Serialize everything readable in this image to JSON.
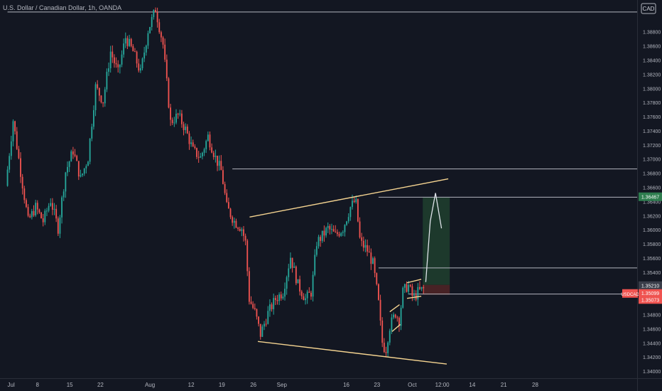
{
  "header": {
    "symbol_description": "U.S. Dollar / Canadian Dollar, 1h, OANDA",
    "currency": "CAD"
  },
  "colors": {
    "background": "#131722",
    "up": "#26a69a",
    "down": "#ef5350",
    "trendline": "#f5d491",
    "hline": "#b2b5be",
    "target_zone": "#1e3b2d",
    "stop_zone": "#4a2326",
    "target_badge": "#2e7d4f",
    "price_badge": "#ef5350",
    "stop_badge": "#ef5350",
    "axis_text": "#b2b5be"
  },
  "chart_data": {
    "type": "candlestick",
    "ylim": [
      1.339,
      1.3925
    ],
    "xlim": [
      -1,
      84
    ],
    "y_ticks": [
      "1.38800",
      "1.38600",
      "1.38400",
      "1.38200",
      "1.38000",
      "1.37800",
      "1.37600",
      "1.37400",
      "1.37200",
      "1.37000",
      "1.36800",
      "1.36600",
      "1.36400",
      "1.36200",
      "1.36000",
      "1.35800",
      "1.35600",
      "1.35400",
      "1.35200",
      "1.35000",
      "1.34800",
      "1.34600",
      "1.34400",
      "1.34200",
      "1.34000"
    ],
    "x_ticks": [
      {
        "label": "Jul",
        "x": 0
      },
      {
        "label": "8",
        "x": 4
      },
      {
        "label": "15",
        "x": 8.3
      },
      {
        "label": "22",
        "x": 12.4
      },
      {
        "label": "Aug",
        "x": 19
      },
      {
        "label": "12",
        "x": 24.5
      },
      {
        "label": "19",
        "x": 28.6
      },
      {
        "label": "26",
        "x": 32.8
      },
      {
        "label": "Sep",
        "x": 36.6
      },
      {
        "label": "16",
        "x": 45.2
      },
      {
        "label": "23",
        "x": 49.3
      },
      {
        "label": "Oct",
        "x": 54
      },
      {
        "label": "12:00",
        "x": 58
      },
      {
        "label": "14",
        "x": 62
      },
      {
        "label": "21",
        "x": 66.2
      },
      {
        "label": "28",
        "x": 70.4
      }
    ],
    "price_path": [
      [
        0,
        1.3662
      ],
      [
        1,
        1.3755
      ],
      [
        2,
        1.3682
      ],
      [
        3,
        1.3612
      ],
      [
        4,
        1.3632
      ],
      [
        5,
        1.3612
      ],
      [
        6,
        1.3642
      ],
      [
        7,
        1.3602
      ],
      [
        8,
        1.3682
      ],
      [
        9,
        1.3712
      ],
      [
        10,
        1.3672
      ],
      [
        11,
        1.3702
      ],
      [
        12,
        1.3802
      ],
      [
        13,
        1.3782
      ],
      [
        14,
        1.3852
      ],
      [
        15,
        1.3822
      ],
      [
        16,
        1.3872
      ],
      [
        17,
        1.3852
      ],
      [
        18,
        1.3822
      ],
      [
        19,
        1.3882
      ],
      [
        20,
        1.3912
      ],
      [
        21,
        1.3862
      ],
      [
        22,
        1.3752
      ],
      [
        23,
        1.3762
      ],
      [
        24,
        1.3742
      ],
      [
        25,
        1.3712
      ],
      [
        26,
        1.3702
      ],
      [
        27,
        1.3732
      ],
      [
        28,
        1.3702
      ],
      [
        28.8,
        1.3682
      ],
      [
        29.5,
        1.3632
      ],
      [
        30.5,
        1.3612
      ],
      [
        31.5,
        1.3602
      ],
      [
        32,
        1.3582
      ],
      [
        32.5,
        1.3502
      ],
      [
        33.3,
        1.3482
      ],
      [
        34,
        1.3452
      ],
      [
        35,
        1.3482
      ],
      [
        36,
        1.3502
      ],
      [
        37,
        1.3512
      ],
      [
        38,
        1.3562
      ],
      [
        39,
        1.3522
      ],
      [
        40,
        1.3502
      ],
      [
        40.8,
        1.3512
      ],
      [
        41.5,
        1.3582
      ],
      [
        42.3,
        1.3592
      ],
      [
        43,
        1.3602
      ],
      [
        44,
        1.3592
      ],
      [
        45,
        1.3602
      ],
      [
        46,
        1.3632
      ],
      [
        46.7,
        1.3642
      ],
      [
        47.3,
        1.3582
      ],
      [
        48.2,
        1.3572
      ],
      [
        49,
        1.3552
      ],
      [
        49.7,
        1.3502
      ],
      [
        50.2,
        1.3442
      ],
      [
        50.7,
        1.3428
      ],
      [
        51.2,
        1.3462
      ],
      [
        52,
        1.3482
      ],
      [
        52.5,
        1.3472
      ],
      [
        53,
        1.3512
      ],
      [
        53.7,
        1.3522
      ],
      [
        54.4,
        1.3502
      ],
      [
        55,
        1.3512
      ],
      [
        55.7,
        1.3516
      ]
    ],
    "projection_path": [
      [
        55.8,
        1.3526
      ],
      [
        56.4,
        1.3612
      ],
      [
        57.1,
        1.3652
      ],
      [
        57.9,
        1.3602
      ]
    ],
    "horizontal_levels": [
      {
        "y": 1.3908,
        "x_start": 0
      },
      {
        "y": 1.3686,
        "x_start": 30
      },
      {
        "y": 1.3546,
        "x_start": 49.5
      },
      {
        "y": 1.3509,
        "x_start": 53.5
      }
    ],
    "trendlines": [
      {
        "x1": 32.3,
        "y1": 1.3618,
        "x2": 58.8,
        "y2": 1.3672
      },
      {
        "x1": 33.4,
        "y1": 1.3442,
        "x2": 58.6,
        "y2": 1.341
      }
    ],
    "flag_channel": [
      {
        "x1": 53.3,
        "y1": 1.3525,
        "x2": 55.2,
        "y2": 1.353
      },
      {
        "x1": 53.3,
        "y1": 1.3503,
        "x2": 55.2,
        "y2": 1.3506
      },
      {
        "x1": 51.0,
        "y1": 1.3484,
        "x2": 52.3,
        "y2": 1.3494
      },
      {
        "x1": 51.3,
        "y1": 1.3456,
        "x2": 52.4,
        "y2": 1.3466
      }
    ],
    "position": {
      "x_start": 55.4,
      "x_end": 59.0,
      "entry": 1.3522,
      "target": 1.3646,
      "stop": 1.3508
    },
    "price_labels": {
      "target": "1.36467",
      "entry": "1.35210",
      "current_symbol": "USDCAD",
      "current_price": "1.35099",
      "countdown": "35:23",
      "stop": "1.35073"
    },
    "price_label_values": {
      "target": 1.36467,
      "entry": 1.3521,
      "current": 1.35099,
      "stop": 1.35073
    }
  }
}
